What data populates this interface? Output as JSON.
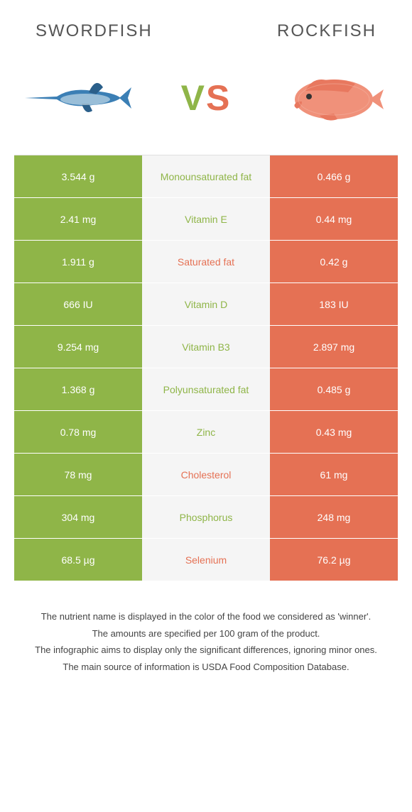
{
  "header": {
    "left_title": "Swordfish",
    "right_title": "Rockfish",
    "vs_v": "V",
    "vs_s": "S"
  },
  "colors": {
    "green": "#8fb548",
    "orange": "#e57154",
    "mid_bg": "#f5f5f5",
    "text_gray": "#555555"
  },
  "rows": [
    {
      "left": "3.544 g",
      "mid": "Monounsaturated fat",
      "right": "0.466 g",
      "winner": "left"
    },
    {
      "left": "2.41 mg",
      "mid": "Vitamin E",
      "right": "0.44 mg",
      "winner": "left"
    },
    {
      "left": "1.911 g",
      "mid": "Saturated fat",
      "right": "0.42 g",
      "winner": "right"
    },
    {
      "left": "666 IU",
      "mid": "Vitamin D",
      "right": "183 IU",
      "winner": "left"
    },
    {
      "left": "9.254 mg",
      "mid": "Vitamin B3",
      "right": "2.897 mg",
      "winner": "left"
    },
    {
      "left": "1.368 g",
      "mid": "Polyunsaturated fat",
      "right": "0.485 g",
      "winner": "left"
    },
    {
      "left": "0.78 mg",
      "mid": "Zinc",
      "right": "0.43 mg",
      "winner": "left"
    },
    {
      "left": "78 mg",
      "mid": "Cholesterol",
      "right": "61 mg",
      "winner": "right"
    },
    {
      "left": "304 mg",
      "mid": "Phosphorus",
      "right": "248 mg",
      "winner": "left"
    },
    {
      "left": "68.5 µg",
      "mid": "Selenium",
      "right": "76.2 µg",
      "winner": "right"
    }
  ],
  "footer": {
    "line1": "The nutrient name is displayed in the color of the food we considered as 'winner'.",
    "line2": "The amounts are specified per 100 gram of the product.",
    "line3": "The infographic aims to display only the significant differences, ignoring minor ones.",
    "line4": "The main source of information is USDA Food Composition Database."
  }
}
